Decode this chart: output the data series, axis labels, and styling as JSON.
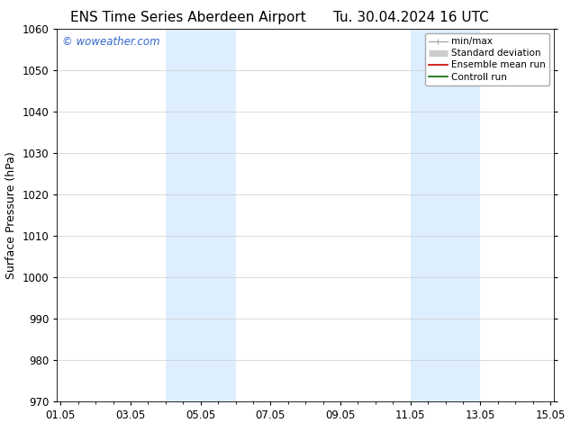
{
  "title_left": "ENS Time Series Aberdeen Airport",
  "title_right": "Tu. 30.04.2024 16 UTC",
  "ylabel": "Surface Pressure (hPa)",
  "watermark": "© woweather.com",
  "watermark_color": "#3366cc",
  "ylim": [
    970,
    1060
  ],
  "yticks": [
    970,
    980,
    990,
    1000,
    1010,
    1020,
    1030,
    1040,
    1050,
    1060
  ],
  "xtick_labels": [
    "01.05",
    "03.05",
    "05.05",
    "07.05",
    "09.05",
    "11.05",
    "13.05",
    "15.05"
  ],
  "xtick_positions": [
    0,
    2,
    4,
    6,
    8,
    10,
    12,
    14
  ],
  "xlim": [
    -0.1,
    14.1
  ],
  "shaded_bands": [
    {
      "x_start": 3.0,
      "x_end": 5.0
    },
    {
      "x_start": 10.0,
      "x_end": 12.0
    }
  ],
  "shade_color": "#ddeeff",
  "background_color": "#ffffff",
  "grid_color": "#cccccc",
  "legend_entries": [
    {
      "label": "min/max",
      "color": "#aaaaaa",
      "lw": 1.0
    },
    {
      "label": "Standard deviation",
      "color": "#cccccc",
      "lw": 5
    },
    {
      "label": "Ensemble mean run",
      "color": "#cc0000",
      "lw": 1.2
    },
    {
      "label": "Controll run",
      "color": "#006600",
      "lw": 1.2
    }
  ],
  "title_fontsize": 11,
  "tick_fontsize": 8.5,
  "ylabel_fontsize": 9,
  "legend_fontsize": 7.5
}
